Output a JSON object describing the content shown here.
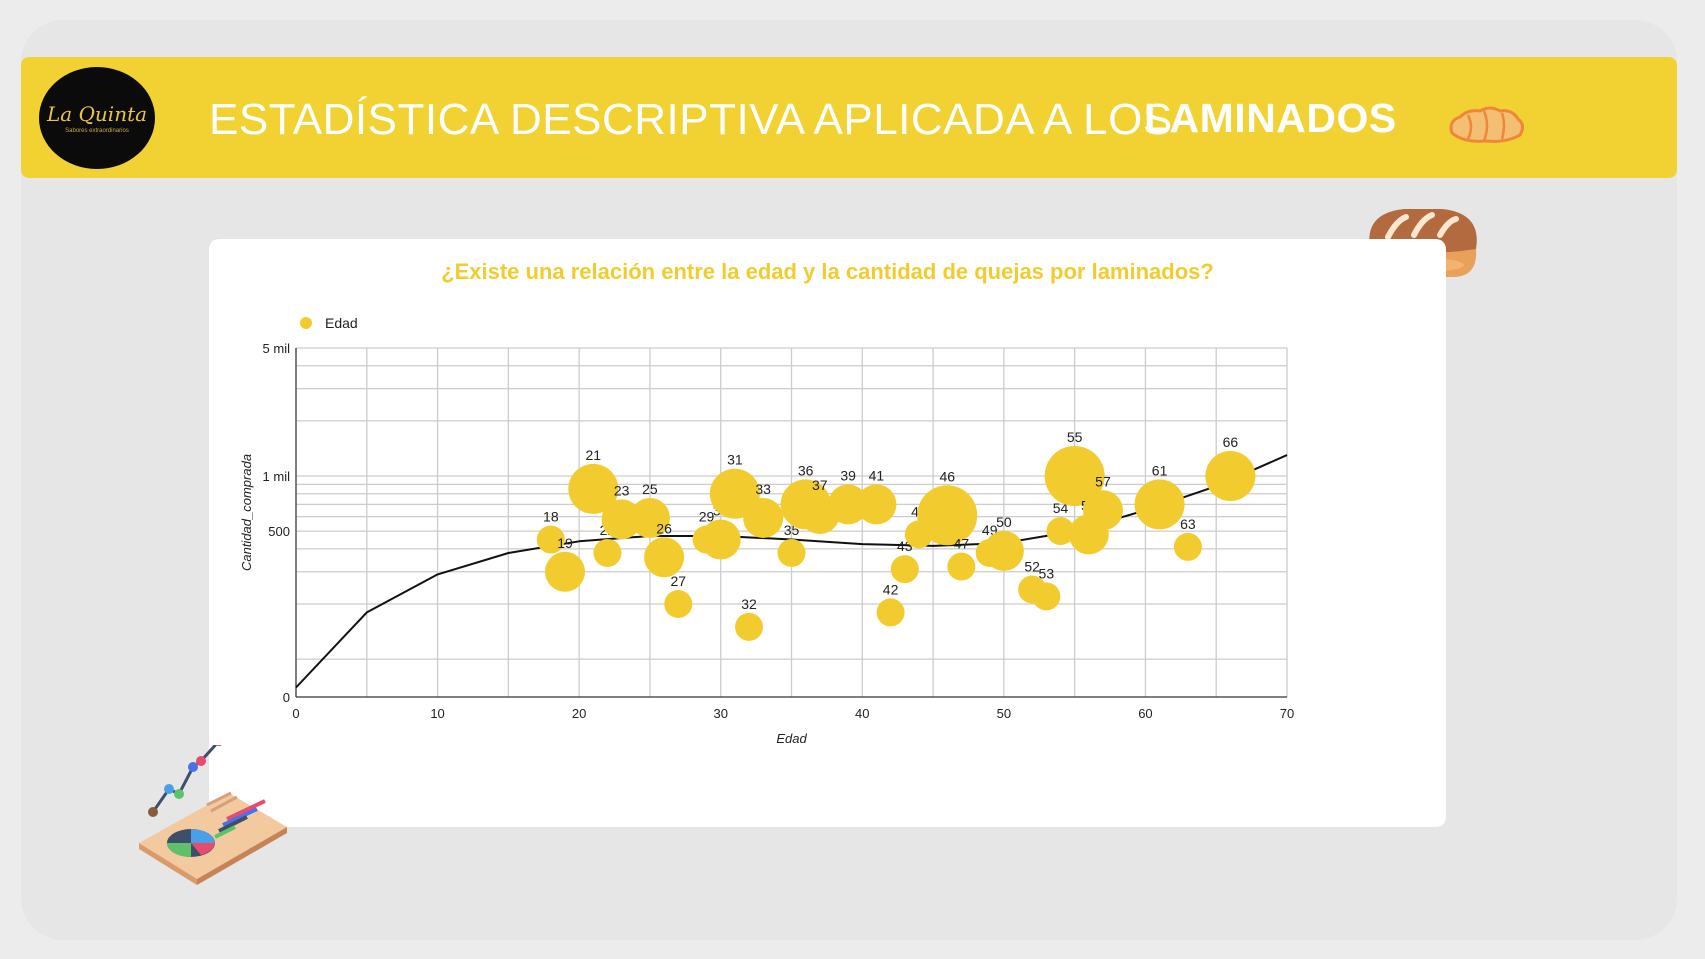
{
  "header": {
    "logo_text": "La Quinta",
    "logo_tagline": "Sabores extraordinarios",
    "title_main": "ESTADÍSTICA DESCRIPTIVA APLICADA A LOS",
    "title_emphasis": "LAMINADOS"
  },
  "colors": {
    "banner": "#f2d232",
    "bubble": "#f2cc2e",
    "trend": "#111111",
    "grid": "#cccccc"
  },
  "icons": [
    "croissant-icon",
    "bread-icon",
    "analytics-report-icon"
  ],
  "chart_data": {
    "type": "scatter",
    "title": "¿Existe una relación entre la edad y la cantidad de quejas por laminados?",
    "xlabel": "Edad",
    "ylabel": "Cantidad_comprada",
    "legend": [
      {
        "name": "Edad",
        "position": "top-left"
      }
    ],
    "xlim": [
      0,
      70
    ],
    "x_ticks": [
      0,
      10,
      20,
      30,
      40,
      50,
      60,
      70
    ],
    "ylim": [
      0,
      5000
    ],
    "y_scale": "log",
    "y_ticks": [
      0,
      500,
      1000,
      5000
    ],
    "y_tick_labels": [
      "0",
      "500",
      "1 mil",
      "5 mil"
    ],
    "grid": true,
    "trendline": "polynomial",
    "points": [
      {
        "label": "18",
        "x": 18,
        "y": 450,
        "size": 14
      },
      {
        "label": "19",
        "x": 19,
        "y": 300,
        "size": 20
      },
      {
        "label": "21",
        "x": 21,
        "y": 850,
        "size": 25
      },
      {
        "label": "22",
        "x": 22,
        "y": 380,
        "size": 14
      },
      {
        "label": "23",
        "x": 23,
        "y": 580,
        "size": 20
      },
      {
        "label": "25",
        "x": 25,
        "y": 590,
        "size": 20
      },
      {
        "label": "26",
        "x": 26,
        "y": 360,
        "size": 20
      },
      {
        "label": "27",
        "x": 27,
        "y": 200,
        "size": 14
      },
      {
        "label": "29",
        "x": 29,
        "y": 450,
        "size": 14
      },
      {
        "label": "30",
        "x": 30,
        "y": 450,
        "size": 20
      },
      {
        "label": "31",
        "x": 31,
        "y": 800,
        "size": 25
      },
      {
        "label": "32",
        "x": 32,
        "y": 150,
        "size": 14
      },
      {
        "label": "33",
        "x": 33,
        "y": 590,
        "size": 20
      },
      {
        "label": "35",
        "x": 35,
        "y": 380,
        "size": 14
      },
      {
        "label": "36",
        "x": 36,
        "y": 700,
        "size": 25
      },
      {
        "label": "37",
        "x": 37,
        "y": 620,
        "size": 20
      },
      {
        "label": "39",
        "x": 39,
        "y": 700,
        "size": 20
      },
      {
        "label": "41",
        "x": 41,
        "y": 700,
        "size": 20
      },
      {
        "label": "42",
        "x": 42,
        "y": 180,
        "size": 14
      },
      {
        "label": "43",
        "x": 43,
        "y": 310,
        "size": 14
      },
      {
        "label": "44",
        "x": 44,
        "y": 480,
        "size": 14
      },
      {
        "label": "46",
        "x": 46,
        "y": 610,
        "size": 30
      },
      {
        "label": "47",
        "x": 47,
        "y": 320,
        "size": 14
      },
      {
        "label": "49",
        "x": 49,
        "y": 380,
        "size": 14
      },
      {
        "label": "50",
        "x": 50,
        "y": 390,
        "size": 20
      },
      {
        "label": "52",
        "x": 52,
        "y": 240,
        "size": 14
      },
      {
        "label": "53",
        "x": 53,
        "y": 220,
        "size": 14
      },
      {
        "label": "54",
        "x": 54,
        "y": 500,
        "size": 14
      },
      {
        "label": "55",
        "x": 55,
        "y": 1000,
        "size": 30
      },
      {
        "label": "56",
        "x": 56,
        "y": 480,
        "size": 20
      },
      {
        "label": "57",
        "x": 57,
        "y": 650,
        "size": 20
      },
      {
        "label": "61",
        "x": 61,
        "y": 700,
        "size": 25
      },
      {
        "label": "63",
        "x": 63,
        "y": 410,
        "size": 14
      },
      {
        "label": "66",
        "x": 66,
        "y": 1000,
        "size": 25
      }
    ],
    "trend": {
      "x": [
        0,
        5,
        10,
        15,
        20,
        25,
        30,
        35,
        40,
        45,
        50,
        55,
        60,
        65,
        70
      ],
      "y": [
        70,
        180,
        290,
        380,
        440,
        470,
        470,
        450,
        425,
        415,
        430,
        500,
        650,
        880,
        1300
      ]
    }
  }
}
